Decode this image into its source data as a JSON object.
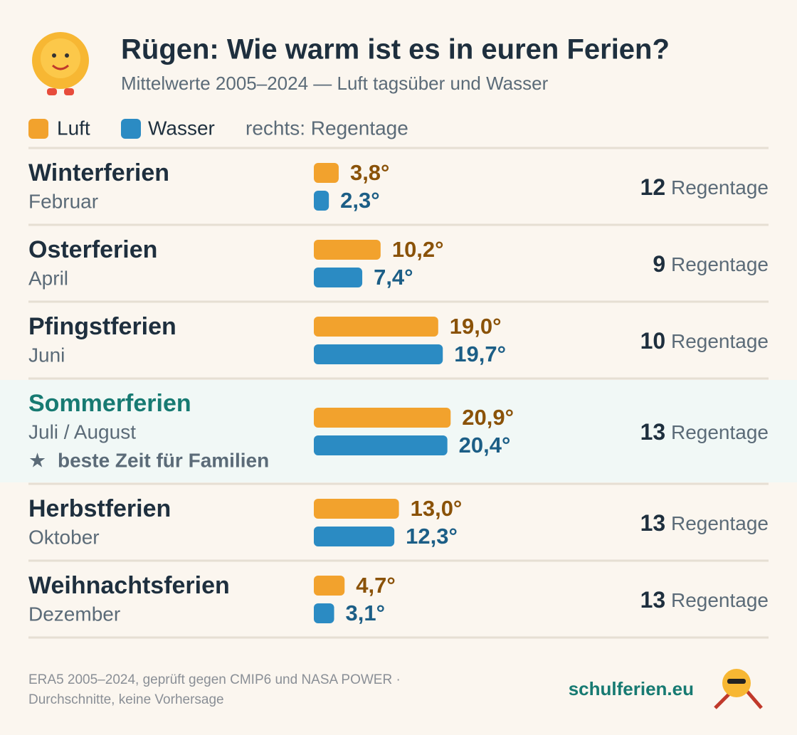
{
  "chart_data": {
    "type": "bar",
    "title": "Rügen: Wie warm ist es in euren Ferien?",
    "subtitle": "Mittelwerte 2005–2024 — Luft tagsüber und Wasser",
    "legend_note": "rechts: Regentage",
    "categories": [
      "Winterferien",
      "Osterferien",
      "Pfingstferien",
      "Sommerferien",
      "Herbstferien",
      "Weihnachtsferien"
    ],
    "sublabels": [
      "Februar",
      "April",
      "Juni",
      "Juli / August",
      "Oktober",
      "Dezember"
    ],
    "highlight": 3,
    "highlight_note": "beste Zeit für Familien",
    "xlim": [
      0,
      25
    ],
    "series": [
      {
        "name": "Luft",
        "color": "#f2a22d",
        "label_color": "#8a5208",
        "values": [
          3.8,
          10.2,
          19.0,
          20.9,
          13.0,
          4.7
        ],
        "value_labels": [
          "3,8°",
          "10,2°",
          "19,0°",
          "20,9°",
          "13,0°",
          "4,7°"
        ]
      },
      {
        "name": "Wasser",
        "color": "#2b8bc3",
        "label_color": "#1c5e86",
        "values": [
          2.3,
          7.4,
          19.7,
          20.4,
          12.3,
          3.1
        ],
        "value_labels": [
          "2,3°",
          "7,4°",
          "19,7°",
          "20,4°",
          "12,3°",
          "3,1°"
        ]
      }
    ],
    "rain_days": [
      12,
      9,
      10,
      13,
      13,
      13
    ],
    "rain_unit": "Regentage",
    "footer": {
      "source": "ERA5 2005–2024, geprüft gegen CMIP6 und NASA POWER ·",
      "note": "Durchschnitte, keine Vorhersage",
      "brand": "schulferien.eu"
    }
  }
}
